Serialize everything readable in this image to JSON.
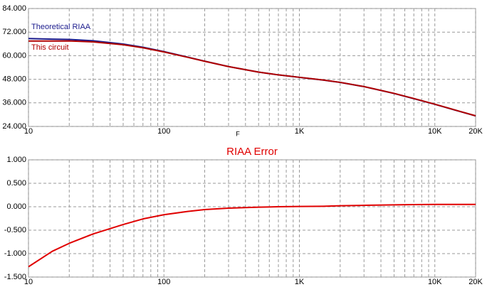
{
  "chart_data": [
    {
      "type": "line",
      "x_label": "F",
      "log_x": true,
      "grid": true,
      "x": [
        10,
        15,
        20,
        30,
        50,
        70,
        100,
        150,
        200,
        300,
        500,
        700,
        1000,
        1500,
        2000,
        3000,
        5000,
        7000,
        10000,
        15000,
        20000
      ],
      "series": [
        {
          "name": "Theoretical RIAA",
          "color": "#1a1a8c",
          "values": [
            68.74,
            68.4,
            68.27,
            67.6,
            65.95,
            64.3,
            62.09,
            59.27,
            57.22,
            54.47,
            51.65,
            50.23,
            49,
            47.6,
            46.41,
            44.26,
            40.79,
            38.15,
            35.27,
            31.8,
            29.38
          ]
        },
        {
          "name": "This circuit",
          "color": "#b00000",
          "values": [
            67.46,
            67.45,
            67.49,
            67.02,
            65.57,
            64.04,
            61.92,
            59.17,
            57.16,
            54.44,
            51.64,
            50.23,
            49.01,
            47.61,
            46.43,
            44.29,
            40.83,
            38.2,
            35.32,
            31.85,
            29.43
          ]
        }
      ],
      "xlim": [
        10,
        20000
      ],
      "xticks": [
        10,
        100,
        {
          "value": 1000,
          "label": "1K"
        },
        {
          "value": 10000,
          "label": "10K"
        },
        {
          "value": 20000,
          "label": "20K"
        }
      ],
      "xminorticks": [
        20,
        30,
        40,
        50,
        60,
        70,
        80,
        90,
        200,
        300,
        400,
        500,
        600,
        700,
        800,
        900,
        2000,
        3000,
        4000,
        5000,
        6000,
        7000,
        8000,
        9000
      ],
      "ylim": [
        24,
        84
      ],
      "yticks": [
        {
          "value": 24,
          "label": "24.000"
        },
        {
          "value": 36,
          "label": "36.000"
        },
        {
          "value": 48,
          "label": "48.000"
        },
        {
          "value": 60,
          "label": "60.000"
        },
        {
          "value": 72,
          "label": "72.000"
        },
        {
          "value": 84,
          "label": "84.000"
        }
      ]
    },
    {
      "type": "line",
      "title": "RIAA Error",
      "log_x": true,
      "grid": true,
      "x": [
        10,
        15,
        20,
        30,
        50,
        70,
        100,
        150,
        200,
        300,
        500,
        700,
        1000,
        1500,
        2000,
        3000,
        5000,
        7000,
        10000,
        15000,
        20000
      ],
      "series": [
        {
          "color": "#e00000",
          "values": [
            -1.28,
            -0.95,
            -0.78,
            -0.58,
            -0.38,
            -0.26,
            -0.17,
            -0.1,
            -0.06,
            -0.03,
            -0.01,
            0,
            0.005,
            0.01,
            0.02,
            0.03,
            0.04,
            0.045,
            0.05,
            0.05,
            0.05
          ]
        }
      ],
      "xlim": [
        10,
        20000
      ],
      "xticks": [
        10,
        100,
        {
          "value": 1000,
          "label": "1K"
        },
        {
          "value": 10000,
          "label": "10K"
        },
        {
          "value": 20000,
          "label": "20K"
        }
      ],
      "xminorticks": [
        20,
        30,
        40,
        50,
        60,
        70,
        80,
        90,
        200,
        300,
        400,
        500,
        600,
        700,
        800,
        900,
        2000,
        3000,
        4000,
        5000,
        6000,
        7000,
        8000,
        9000
      ],
      "ylim": [
        -1.5,
        1
      ],
      "yticks": [
        {
          "value": -1.5,
          "label": "-1.500"
        },
        {
          "value": -1,
          "label": "-1.000"
        },
        {
          "value": -0.5,
          "label": "-0.500"
        },
        {
          "value": 0,
          "label": "0.000"
        },
        {
          "value": 0.5,
          "label": "0.500"
        },
        {
          "value": 1,
          "label": "1.000"
        }
      ]
    }
  ]
}
